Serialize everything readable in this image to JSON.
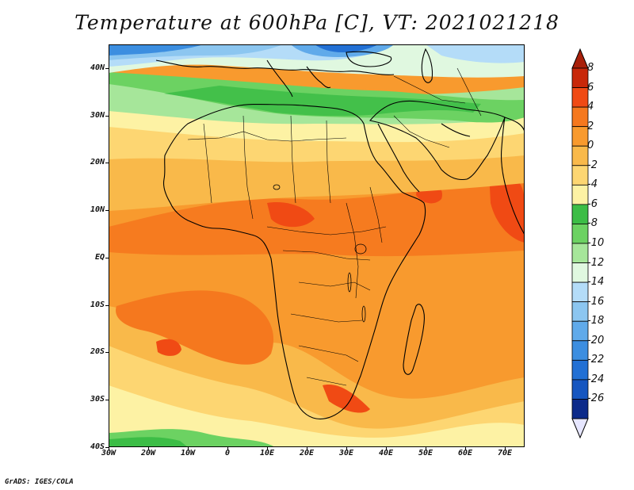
{
  "title": "Temperature at 600hPa [C], VT: 2021021218",
  "credit": "GrADS: IGES/COLA",
  "map": {
    "projection": "latitude-longitude",
    "lon_range": [
      -30,
      75
    ],
    "lat_range": [
      -40,
      45
    ],
    "lat_ticks": [
      {
        "value": 40,
        "label": "40N"
      },
      {
        "value": 30,
        "label": "30N"
      },
      {
        "value": 20,
        "label": "20N"
      },
      {
        "value": 10,
        "label": "10N"
      },
      {
        "value": 0,
        "label": "EQ"
      },
      {
        "value": -10,
        "label": "10S"
      },
      {
        "value": -20,
        "label": "20S"
      },
      {
        "value": -30,
        "label": "30S"
      },
      {
        "value": -40,
        "label": "40S"
      }
    ],
    "lon_ticks": [
      {
        "value": -30,
        "label": "30W"
      },
      {
        "value": -20,
        "label": "20W"
      },
      {
        "value": -10,
        "label": "10W"
      },
      {
        "value": 0,
        "label": "0"
      },
      {
        "value": 10,
        "label": "10E"
      },
      {
        "value": 20,
        "label": "20E"
      },
      {
        "value": 30,
        "label": "30E"
      },
      {
        "value": 40,
        "label": "40E"
      },
      {
        "value": 50,
        "label": "50E"
      },
      {
        "value": 60,
        "label": "60E"
      },
      {
        "value": 70,
        "label": "70E"
      }
    ]
  },
  "legend": {
    "unit": "C",
    "levels": [
      {
        "label": "8",
        "color": "#c8280a"
      },
      {
        "label": "6",
        "color": "#f04a14"
      },
      {
        "label": "4",
        "color": "#f5781e"
      },
      {
        "label": "2",
        "color": "#f89a2e"
      },
      {
        "label": "0",
        "color": "#f9b94a"
      },
      {
        "label": "-2",
        "color": "#fdd672"
      },
      {
        "label": "-4",
        "color": "#fdf2a4"
      },
      {
        "label": "-6",
        "color": "#3cbd46"
      },
      {
        "label": "-8",
        "color": "#6cd262"
      },
      {
        "label": "-10",
        "color": "#a6e69a"
      },
      {
        "label": "-12",
        "color": "#e0f8e0"
      },
      {
        "label": "-14",
        "color": "#b4dcf8"
      },
      {
        "label": "-16",
        "color": "#8cc6f0"
      },
      {
        "label": "-18",
        "color": "#60aaea"
      },
      {
        "label": "-20",
        "color": "#3c8ee0"
      },
      {
        "label": "-22",
        "color": "#2270d4"
      },
      {
        "label": "-24",
        "color": "#1656c0"
      },
      {
        "label": "-26",
        "color": "#0c2a8a"
      }
    ],
    "top_color": "#a8200a",
    "bottom_color": "#e6e6ff"
  }
}
